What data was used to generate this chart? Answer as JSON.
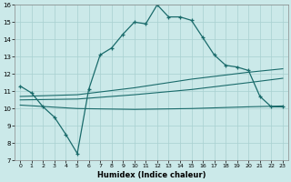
{
  "bg_color": "#cbe9e9",
  "grid_color": "#a8d0d0",
  "line_color": "#1a6b6b",
  "line1_x": [
    0,
    1,
    2,
    3,
    4,
    5,
    6,
    7,
    8,
    9,
    10,
    11,
    12,
    13,
    14,
    15,
    16,
    17,
    18,
    19,
    20,
    21,
    22,
    23
  ],
  "line1_y": [
    11.3,
    10.9,
    10.1,
    9.5,
    8.5,
    7.4,
    11.1,
    13.1,
    13.5,
    14.3,
    15.0,
    14.9,
    16.0,
    15.3,
    15.3,
    15.1,
    14.1,
    13.1,
    12.5,
    12.4,
    12.2,
    10.7,
    10.1,
    10.1
  ],
  "line2_x": [
    0,
    5,
    10,
    15,
    20,
    23
  ],
  "line2_y": [
    10.7,
    10.8,
    11.2,
    11.7,
    12.1,
    12.3
  ],
  "line3_x": [
    0,
    5,
    10,
    15,
    20,
    23
  ],
  "line3_y": [
    10.5,
    10.55,
    10.8,
    11.1,
    11.5,
    11.75
  ],
  "line4_x": [
    0,
    5,
    10,
    15,
    20,
    23
  ],
  "line4_y": [
    10.2,
    10.0,
    9.95,
    10.0,
    10.1,
    10.15
  ],
  "xlabel": "Humidex (Indice chaleur)",
  "xlim": [
    -0.5,
    23.5
  ],
  "ylim": [
    7,
    16
  ],
  "xticks": [
    0,
    1,
    2,
    3,
    4,
    5,
    6,
    7,
    8,
    9,
    10,
    11,
    12,
    13,
    14,
    15,
    16,
    17,
    18,
    19,
    20,
    21,
    22,
    23
  ],
  "yticks": [
    7,
    8,
    9,
    10,
    11,
    12,
    13,
    14,
    15,
    16
  ]
}
